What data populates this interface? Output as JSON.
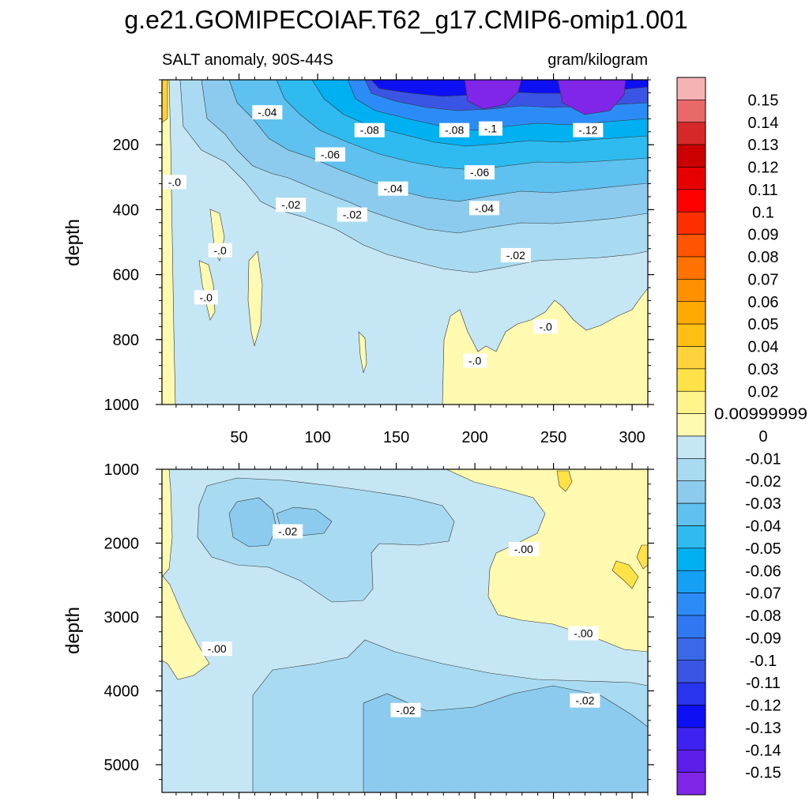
{
  "chart_data": {
    "type": "heatmap",
    "title": "g.e21.GOMIPECOIAF.T62_g17.CMIP6-omip1.001",
    "subtitle_left": "SALT anomaly, 90S-44S",
    "subtitle_right": "gram/kilogram",
    "xlim": [
      1,
      310
    ],
    "x_ticks": [
      "50",
      "100",
      "150",
      "200",
      "250",
      "300"
    ],
    "x_tick_values": [
      50,
      100,
      150,
      200,
      250,
      300
    ],
    "panels": [
      {
        "ylabel": "depth",
        "ylim": [
          0,
          1000
        ],
        "y_ticks": [
          "200",
          "400",
          "600",
          "800",
          "1000"
        ],
        "y_tick_values": [
          200,
          400,
          600,
          800,
          1000
        ],
        "contour_labels": [
          {
            "text": "-.04",
            "x": 68,
            "y": 100
          },
          {
            "text": "-.08",
            "x": 133,
            "y": 155
          },
          {
            "text": "-.08",
            "x": 187,
            "y": 155
          },
          {
            "text": "-.1",
            "x": 210,
            "y": 150
          },
          {
            "text": "-.12",
            "x": 272,
            "y": 155
          },
          {
            "text": "-.06",
            "x": 108,
            "y": 230
          },
          {
            "text": "-.06",
            "x": 203,
            "y": 285
          },
          {
            "text": "-.04",
            "x": 148,
            "y": 335
          },
          {
            "text": "-.04",
            "x": 206,
            "y": 395
          },
          {
            "text": "-.02",
            "x": 83,
            "y": 385
          },
          {
            "text": "-.02",
            "x": 122,
            "y": 415
          },
          {
            "text": "-.02",
            "x": 226,
            "y": 540
          },
          {
            "text": "-.0",
            "x": 9,
            "y": 315
          },
          {
            "text": "-.0",
            "x": 38,
            "y": 525
          },
          {
            "text": "-.0",
            "x": 29,
            "y": 670
          },
          {
            "text": "-.0",
            "x": 245,
            "y": 760
          },
          {
            "text": "-.0",
            "x": 200,
            "y": 865
          }
        ]
      },
      {
        "ylabel": "depth",
        "ylim": [
          1000,
          5375
        ],
        "y_ticks": [
          "1000",
          "2000",
          "3000",
          "4000",
          "5000"
        ],
        "y_tick_values": [
          1000,
          2000,
          3000,
          4000,
          5000
        ],
        "contour_labels": [
          {
            "text": "-.02",
            "x": 81,
            "y": 1840
          },
          {
            "text": "-.00",
            "x": 231,
            "y": 2080
          },
          {
            "text": "-.00",
            "x": 36,
            "y": 3430
          },
          {
            "text": "-.00",
            "x": 269,
            "y": 3220
          },
          {
            "text": "-.02",
            "x": 156,
            "y": 4260
          },
          {
            "text": "-.02",
            "x": 270,
            "y": 4130
          }
        ]
      }
    ],
    "colorbar": {
      "labels": [
        "0.15",
        "0.14",
        "0.13",
        "0.12",
        "0.11",
        "0.1",
        "0.09",
        "0.08",
        "0.07",
        "0.06",
        "0.05",
        "0.04",
        "0.03",
        "0.02",
        "0.00999999",
        "0",
        "-0.01",
        "-0.02",
        "-0.03",
        "-0.04",
        "-0.05",
        "-0.06",
        "-0.07",
        "-0.08",
        "-0.09",
        "-0.1",
        "-0.11",
        "-0.12",
        "-0.13",
        "-0.14",
        "-0.15"
      ],
      "colors": [
        "#f6b3b4",
        "#e96868",
        "#d62828",
        "#cc0000",
        "#e80000",
        "#ff0000",
        "#ff2e00",
        "#ff5500",
        "#ff7200",
        "#ff9000",
        "#ffaa00",
        "#ffbf12",
        "#ffd13a",
        "#ffe247",
        "#fff38a",
        "#fffaaf",
        "#c5e6f5",
        "#a8dbf2",
        "#8ccbee",
        "#5ec1ef",
        "#2fbbf0",
        "#00b0f0",
        "#14a0f5",
        "#2b8cf7",
        "#2f78f2",
        "#3a68e8",
        "#3a55e4",
        "#2834ee",
        "#0d10f5",
        "#3e22f2",
        "#5c1ee8",
        "#7f26e8"
      ]
    }
  }
}
